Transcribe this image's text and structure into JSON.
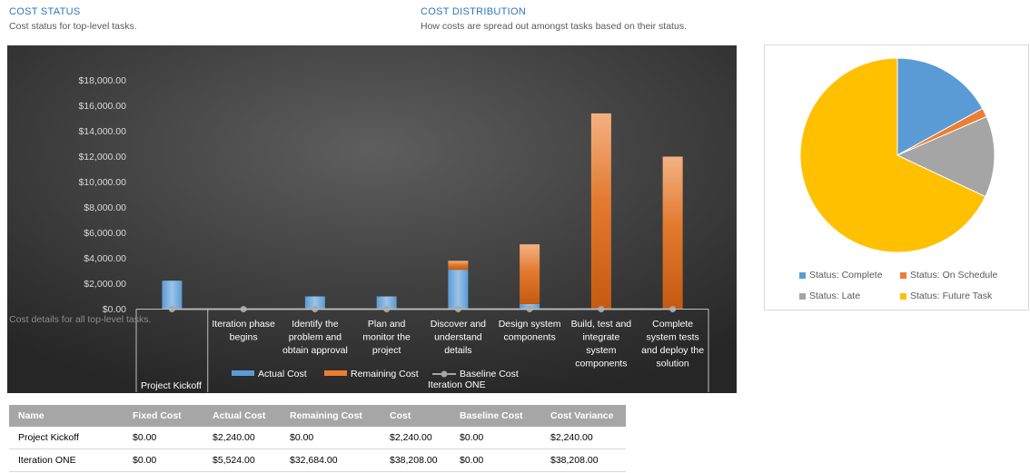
{
  "cost_status": {
    "title": "COST STATUS",
    "subtitle": "Cost status for top-level tasks."
  },
  "cost_distribution": {
    "title": "COST DISTRIBUTION",
    "subtitle": "How costs are spread out amongst tasks based on their status."
  },
  "chart_overlay_text": "Cost details for all top-level tasks.",
  "chart_data": [
    {
      "type": "bar",
      "categories": [
        "Project Kickoff",
        "Iteration phase begins",
        "Identify the problem and obtain approval",
        "Plan and monitor the project",
        "Discover and understand details",
        "Design system components",
        "Build, test and integrate system components",
        "Complete system tests and deploy the solution"
      ],
      "category_lines": [
        [
          "Project Kickoff"
        ],
        [
          "Iteration phase",
          "begins"
        ],
        [
          "Identify the",
          "problem and",
          "obtain approval"
        ],
        [
          "Plan and",
          "monitor the",
          "project"
        ],
        [
          "Discover and",
          "understand",
          "details"
        ],
        [
          "Design system",
          "components"
        ],
        [
          "Build, test and",
          "integrate",
          "system",
          "components"
        ],
        [
          "Complete",
          "system tests",
          "and deploy the",
          "solution"
        ]
      ],
      "groups": [
        {
          "name": "Project Kickoff",
          "from": 0,
          "to": 0
        },
        {
          "name": "Iteration ONE",
          "from": 1,
          "to": 7
        }
      ],
      "stacked": true,
      "series": [
        {
          "name": "Actual Cost",
          "type": "bar",
          "color": "#5b9bd5",
          "values": [
            2240,
            0,
            1000,
            1000,
            3100,
            400,
            0,
            0
          ]
        },
        {
          "name": "Remaining Cost",
          "type": "bar",
          "color": "#ed7d31",
          "values": [
            0,
            0,
            0,
            0,
            700,
            4700,
            15400,
            12000
          ]
        },
        {
          "name": "Baseline Cost",
          "type": "line",
          "color": "#a5a5a5",
          "values": [
            0,
            0,
            0,
            0,
            0,
            0,
            0,
            0
          ]
        }
      ],
      "yticks": [
        "$0.00",
        "$2,000.00",
        "$4,000.00",
        "$6,000.00",
        "$8,000.00",
        "$10,000.00",
        "$12,000.00",
        "$14,000.00",
        "$16,000.00",
        "$18,000.00"
      ],
      "ylim": [
        0,
        18000
      ],
      "grid": false,
      "legend": "bottom"
    },
    {
      "type": "pie",
      "labels": [
        "Status: Complete",
        "Status: On Schedule",
        "Status: Late",
        "Status: Future Task"
      ],
      "values": [
        17,
        1.5,
        13.5,
        68
      ],
      "colors": [
        "#5b9bd5",
        "#ed7d31",
        "#a5a5a5",
        "#ffc000"
      ],
      "legend": "bottom"
    }
  ],
  "table": {
    "headers": [
      "Name",
      "Fixed Cost",
      "Actual Cost",
      "Remaining Cost",
      "Cost",
      "Baseline Cost",
      "Cost Variance"
    ],
    "rows": [
      [
        "Project Kickoff",
        "$0.00",
        "$2,240.00",
        "$0.00",
        "$2,240.00",
        "$0.00",
        "$2,240.00"
      ],
      [
        "Iteration ONE",
        "$0.00",
        "$5,524.00",
        "$32,684.00",
        "$38,208.00",
        "$0.00",
        "$38,208.00"
      ]
    ]
  }
}
